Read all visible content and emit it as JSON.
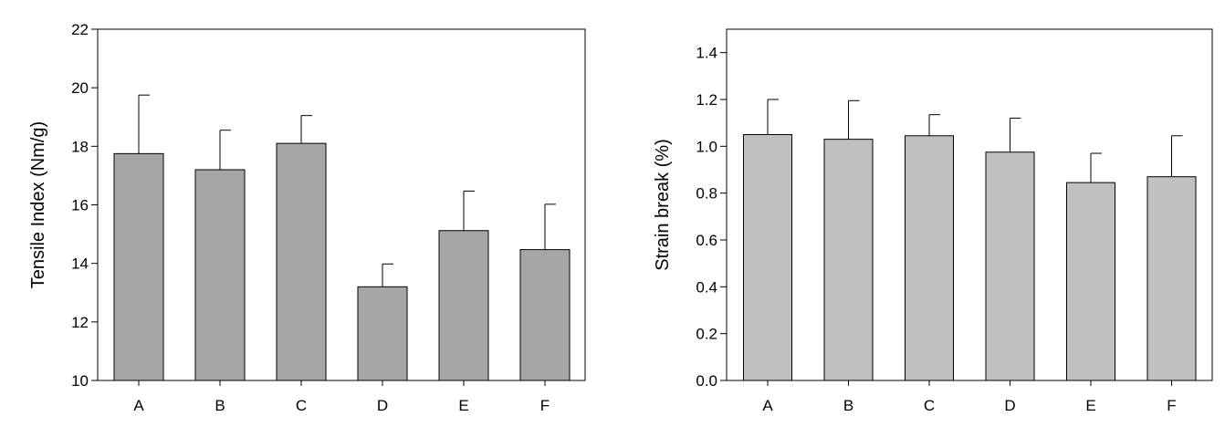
{
  "chart_data": [
    {
      "type": "bar",
      "title": "",
      "xlabel": "",
      "ylabel": "Tensile Index (Nm/g)",
      "ylim": [
        10,
        22
      ],
      "yticks": [
        10,
        12,
        14,
        16,
        18,
        20,
        22
      ],
      "ytick_labels": [
        "10",
        "12",
        "14",
        "16",
        "18",
        "20",
        "22"
      ],
      "categories": [
        "A",
        "B",
        "C",
        "D",
        "E",
        "F"
      ],
      "values": [
        17.75,
        17.2,
        18.1,
        13.2,
        15.12,
        14.47
      ],
      "errors": [
        2.0,
        1.35,
        0.95,
        0.78,
        1.35,
        1.55
      ],
      "bar_color": "#a6a6a6",
      "grid": false
    },
    {
      "type": "bar",
      "title": "",
      "xlabel": "",
      "ylabel": "Strain break (%)",
      "ylim": [
        0.0,
        1.5
      ],
      "yticks": [
        0.0,
        0.2,
        0.4,
        0.6,
        0.8,
        1.0,
        1.2,
        1.4
      ],
      "ytick_labels": [
        "0.0",
        "0.2",
        "0.4",
        "0.6",
        "0.8",
        "1.0",
        "1.2",
        "1.4"
      ],
      "categories": [
        "A",
        "B",
        "C",
        "D",
        "E",
        "F"
      ],
      "values": [
        1.05,
        1.03,
        1.045,
        0.975,
        0.845,
        0.87
      ],
      "errors": [
        0.15,
        0.165,
        0.09,
        0.145,
        0.125,
        0.175
      ],
      "bar_color": "#c0c0c0",
      "grid": false
    }
  ]
}
